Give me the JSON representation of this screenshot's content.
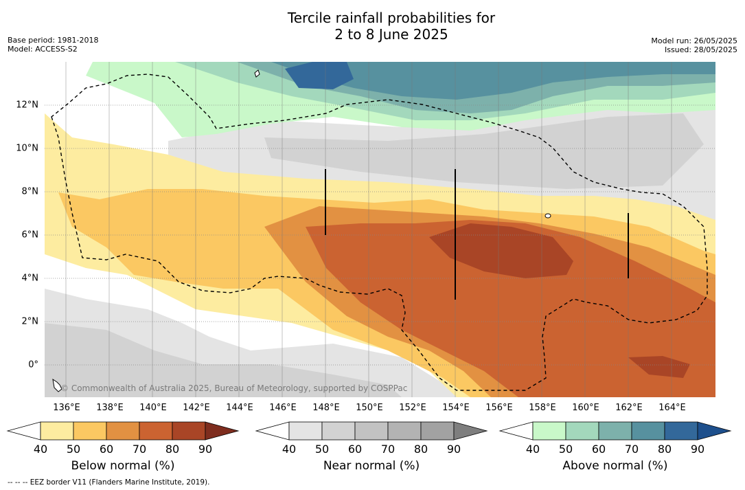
{
  "title": {
    "line1": "Tercile rainfall probabilities for",
    "line2": "2 to 8 June 2025"
  },
  "meta": {
    "base_period": "Base period: 1981-2018",
    "model": "Model: ACCESS-S2",
    "model_run": "Model run: 26/05/2025",
    "issued": "Issued: 28/05/2025"
  },
  "map": {
    "copyright": "© Commonwealth of Australia 2025, Bureau of Meteorology, supported by COSPPac",
    "longitude_labels": [
      "136°E",
      "138°E",
      "140°E",
      "142°E",
      "144°E",
      "146°E",
      "148°E",
      "150°E",
      "152°E",
      "154°E",
      "156°E",
      "158°E",
      "160°E",
      "162°E",
      "164°E"
    ],
    "latitude_labels": [
      "12°N",
      "10°N",
      "8°N",
      "6°N",
      "4°N",
      "2°N",
      "0°"
    ],
    "lon_range": [
      134,
      165
    ],
    "lat_range": [
      -1.5,
      14
    ],
    "eez_line_style": "dashed black",
    "grid": "dotted"
  },
  "colorbars": [
    {
      "title": "Below normal (%)",
      "ticks": [
        "40",
        "50",
        "60",
        "70",
        "80",
        "90"
      ],
      "colors": [
        "#ffffff",
        "#fdeca0",
        "#fbc862",
        "#e29142",
        "#cb6331",
        "#a94526",
        "#7e2d1e"
      ]
    },
    {
      "title": "Near normal (%)",
      "ticks": [
        "40",
        "50",
        "60",
        "70",
        "80",
        "90"
      ],
      "colors": [
        "#ffffff",
        "#e4e4e4",
        "#d2d2d2",
        "#c2c2c2",
        "#b3b3b3",
        "#a2a2a2",
        "#7e7e7e"
      ]
    },
    {
      "title": "Above normal (%)",
      "ticks": [
        "40",
        "50",
        "60",
        "70",
        "80",
        "90"
      ],
      "colors": [
        "#ffffff",
        "#c9f8c9",
        "#a3d8bc",
        "#7db1ab",
        "#57919f",
        "#33689a",
        "#1d4f8c"
      ]
    }
  ],
  "footer": "--  --  -- EEZ border V11 (Flanders Marine Institute, 2019)."
}
